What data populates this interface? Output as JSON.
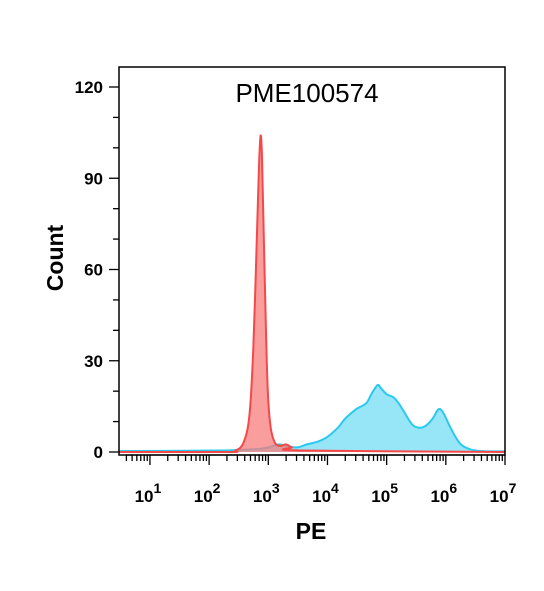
{
  "chart_data": {
    "type": "area",
    "title": "PME100574",
    "xlabel": "PE",
    "ylabel": "Count",
    "xscale": "log",
    "xlim": [
      3,
      10000000
    ],
    "ylim": [
      0,
      125
    ],
    "grid": false,
    "legend": "none",
    "y_ticks": [
      {
        "value": 0,
        "label": "0"
      },
      {
        "value": 30,
        "label": "30"
      },
      {
        "value": 60,
        "label": "60"
      },
      {
        "value": 90,
        "label": "90"
      },
      {
        "value": 120,
        "label": "120"
      }
    ],
    "x_ticks": [
      {
        "value": 10,
        "base": "10",
        "exp": "1"
      },
      {
        "value": 100,
        "base": "10",
        "exp": "2"
      },
      {
        "value": 1000,
        "base": "10",
        "exp": "3"
      },
      {
        "value": 10000,
        "base": "10",
        "exp": "4"
      },
      {
        "value": 100000,
        "base": "10",
        "exp": "5"
      },
      {
        "value": 1000000,
        "base": "10",
        "exp": "6"
      },
      {
        "value": 10000000,
        "base": "10",
        "exp": "7"
      }
    ],
    "series": [
      {
        "color": "#5ED8F5",
        "stroke": "#2BC8F0",
        "fill_opacity": 0.65,
        "x": [
          3,
          150,
          400,
          700,
          1000,
          1500,
          2000,
          3000,
          4500,
          7000,
          10000,
          15000,
          20000,
          30000,
          45000,
          55000,
          70000,
          80000,
          100000,
          130000,
          160000,
          200000,
          270000,
          350000,
          450000,
          600000,
          750000,
          900000,
          1200000,
          1700000,
          2500000,
          4000000,
          10000000
        ],
        "y": [
          0.3,
          0.5,
          0.8,
          1,
          1.5,
          2.5,
          2,
          1.5,
          2.5,
          3.5,
          5,
          8,
          11,
          14,
          16,
          19,
          22,
          21,
          19,
          18,
          16,
          13,
          9,
          8,
          8.5,
          11,
          14,
          13,
          8,
          3,
          1,
          0.3,
          0.2
        ]
      },
      {
        "color": "#F77C7C",
        "stroke": "#F54848",
        "fill_opacity": 0.75,
        "x": [
          3,
          200,
          280,
          380,
          480,
          560,
          640,
          700,
          740,
          780,
          830,
          900,
          980,
          1100,
          1300,
          1600,
          2000,
          2500,
          3500,
          10000000
        ],
        "y": [
          0,
          0,
          0.5,
          3,
          12,
          35,
          70,
          95,
          104,
          98,
          75,
          45,
          20,
          8,
          3,
          2,
          2.5,
          1.5,
          0.5,
          0
        ]
      }
    ]
  }
}
